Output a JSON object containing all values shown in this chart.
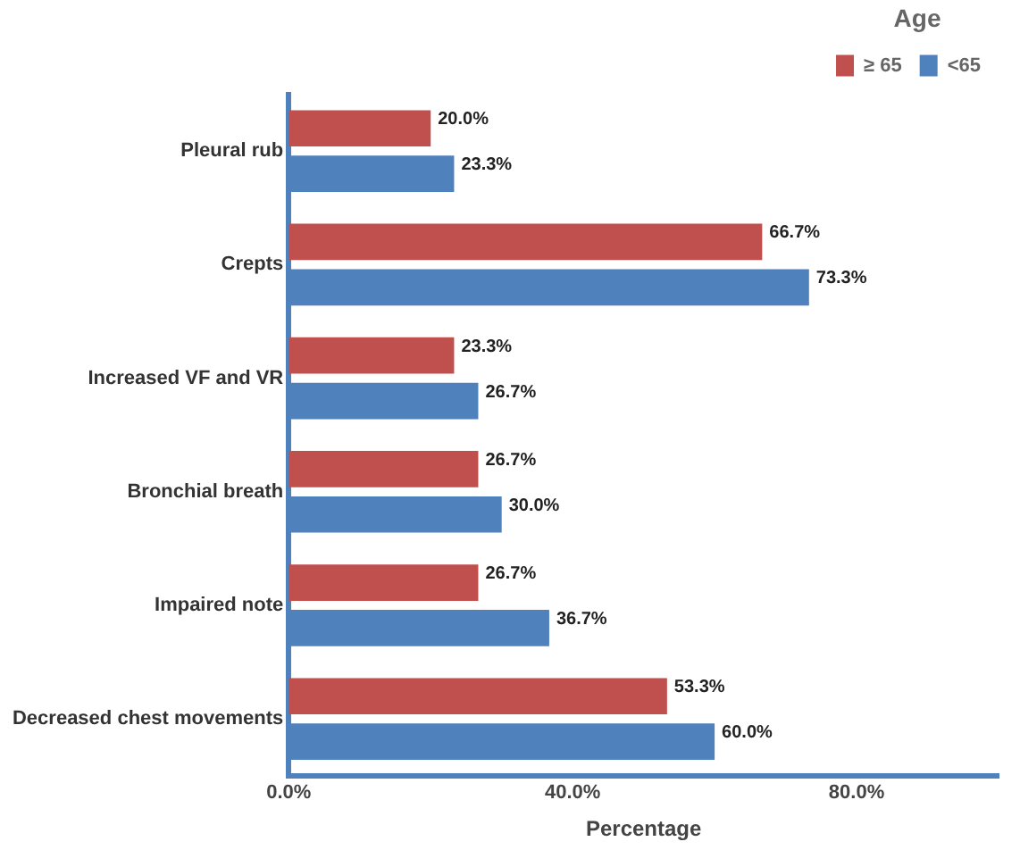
{
  "chart_data": {
    "type": "bar",
    "orientation": "horizontal",
    "xlabel": "Percentage",
    "legend_title": "Age",
    "legend": "top right",
    "grid": false,
    "categories": [
      "Pleural rub",
      "Crepts",
      "Increased VF and VR",
      "Bronchial breath",
      "Impaired note",
      "Decreased chest movements"
    ],
    "xlim": [
      0,
      100
    ],
    "xticks": [
      {
        "value": 0,
        "label": "0.0%"
      },
      {
        "value": 40,
        "label": "40.0%"
      },
      {
        "value": 80,
        "label": "80.0%"
      }
    ],
    "series": [
      {
        "name": "≥ 65",
        "color": "#c0504d",
        "values": [
          20.0,
          66.7,
          23.3,
          26.7,
          26.7,
          53.3
        ],
        "value_labels": [
          "20.0%",
          "66.7%",
          "23.3%",
          "26.7%",
          "26.7%",
          "53.3%"
        ]
      },
      {
        "name": "<65",
        "color": "#4f81bd",
        "values": [
          23.3,
          73.3,
          26.7,
          30.0,
          36.7,
          60.0
        ],
        "value_labels": [
          "23.3%",
          "73.3%",
          "26.7%",
          "30.0%",
          "36.7%",
          "60.0%"
        ]
      }
    ]
  }
}
